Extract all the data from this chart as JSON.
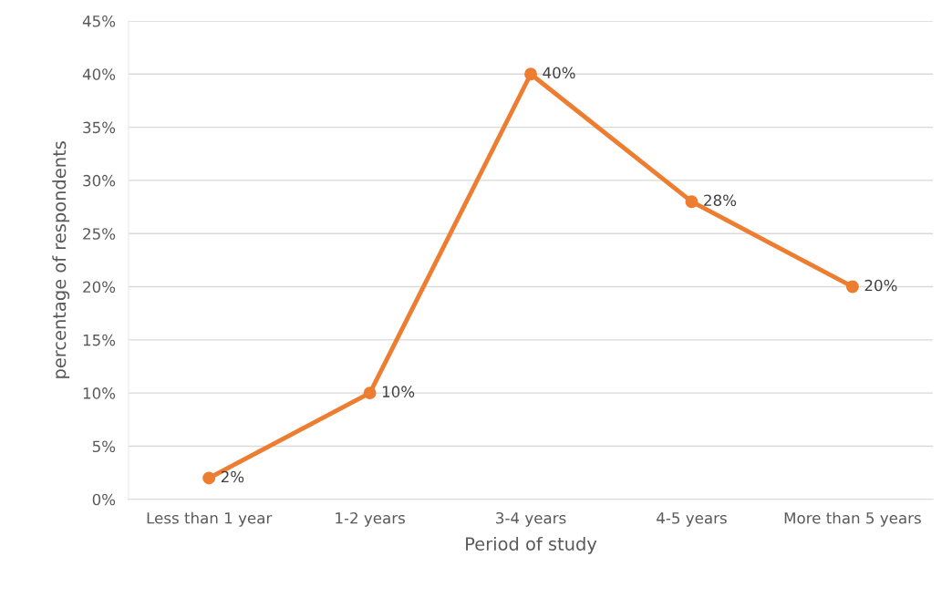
{
  "chart_data": {
    "type": "line",
    "xlabel": "Period of study",
    "ylabel": "percentage of respondents",
    "categories": [
      "Less than 1 year",
      "1-2 years",
      "3-4 years",
      "4-5 years",
      "More than 5 years"
    ],
    "series": [
      {
        "color": "#ed7d31",
        "values": [
          2,
          10,
          40,
          28,
          20
        ],
        "value_labels": [
          "2%",
          "10%",
          "40%",
          "28%",
          "20%"
        ]
      }
    ],
    "ylim": [
      0,
      45
    ],
    "yticks": [
      {
        "value": 0,
        "label": "0%"
      },
      {
        "value": 5,
        "label": "5%"
      },
      {
        "value": 10,
        "label": "10%"
      },
      {
        "value": 15,
        "label": "15%"
      },
      {
        "value": 20,
        "label": "20%"
      },
      {
        "value": 25,
        "label": "25%"
      },
      {
        "value": 30,
        "label": "30%"
      },
      {
        "value": 35,
        "label": "35%"
      },
      {
        "value": 40,
        "label": "40%"
      },
      {
        "value": 45,
        "label": "45%"
      }
    ],
    "grid": "y",
    "marker": "circle",
    "line_style": "solid"
  }
}
